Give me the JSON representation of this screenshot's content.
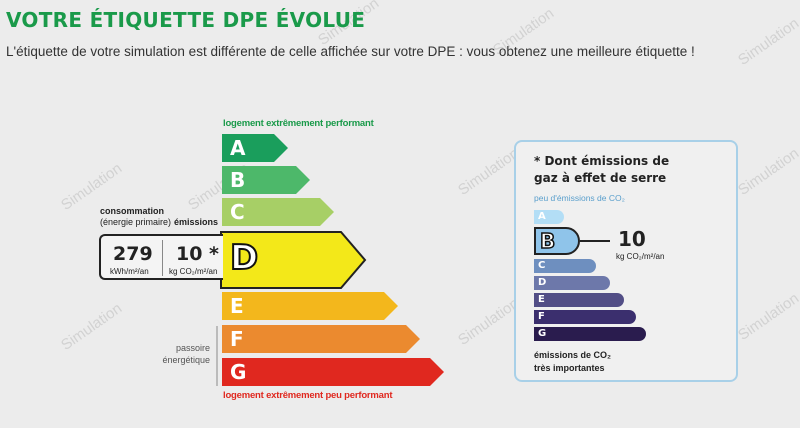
{
  "header": {
    "title": "VOTRE ÉTIQUETTE DPE ÉVOLUE",
    "subtitle": "L'étiquette de votre simulation est différente de celle affichée sur votre DPE : vous obtenez une meilleure étiquette !"
  },
  "watermark_text": "Simulation",
  "dpe": {
    "top_label": "logement extrêmement performant",
    "bottom_label": "logement extrêmement peu performant",
    "current_class": "D",
    "classes": [
      {
        "letter": "A",
        "color": "#1a9e5c"
      },
      {
        "letter": "B",
        "color": "#4db86a"
      },
      {
        "letter": "C",
        "color": "#a7cf66"
      },
      {
        "letter": "D",
        "color": "#f3e819"
      },
      {
        "letter": "E",
        "color": "#f3b71c"
      },
      {
        "letter": "F",
        "color": "#eb8a2f"
      },
      {
        "letter": "G",
        "color": "#e0281f"
      }
    ],
    "consumption_label": "consommation",
    "consumption_sub": "(énergie primaire)",
    "emissions_label": "émissions",
    "consumption_value": "279",
    "consumption_unit": "kWh/m²/an",
    "emissions_value": "10 *",
    "emissions_unit": "kg CO₂/m²/an",
    "passoire_line1": "passoire",
    "passoire_line2": "énergétique"
  },
  "ges": {
    "title": "* Dont émissions de gaz à effet de serre",
    "low_label": "peu d'émissions de CO₂",
    "high_line1": "émissions de CO₂",
    "high_line2": "très importantes",
    "current_class": "B",
    "value": "10",
    "unit": "kg CO₂/m²/an",
    "classes": [
      {
        "letter": "A",
        "color": "#b3def6"
      },
      {
        "letter": "B",
        "color": "#8fc4ea"
      },
      {
        "letter": "C",
        "color": "#6e8fbf"
      },
      {
        "letter": "D",
        "color": "#6d78aa"
      },
      {
        "letter": "E",
        "color": "#524e86"
      },
      {
        "letter": "F",
        "color": "#3b2f6e"
      },
      {
        "letter": "G",
        "color": "#2a1c4e"
      }
    ]
  }
}
